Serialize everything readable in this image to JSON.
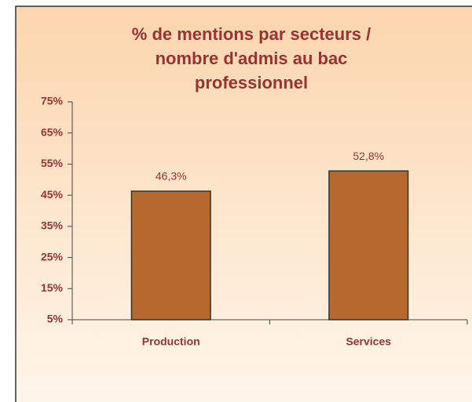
{
  "chart_data": {
    "type": "bar",
    "title": "% de mentions par secteurs / nombre d'admis au bac professionnel",
    "categories": [
      "Production",
      "Services"
    ],
    "values": [
      46.3,
      52.8
    ],
    "value_labels": [
      "46,3%",
      "52,8%"
    ],
    "color": "#b5692e",
    "ylim": [
      5,
      75
    ],
    "yticks": [
      {
        "value": 5,
        "label": "5%"
      },
      {
        "value": 15,
        "label": "15%"
      },
      {
        "value": 25,
        "label": "25%"
      },
      {
        "value": 35,
        "label": "35%"
      },
      {
        "value": 45,
        "label": "45%"
      },
      {
        "value": 55,
        "label": "55%"
      },
      {
        "value": 65,
        "label": "65%"
      },
      {
        "value": 75,
        "label": "75%"
      }
    ],
    "grid": false
  }
}
